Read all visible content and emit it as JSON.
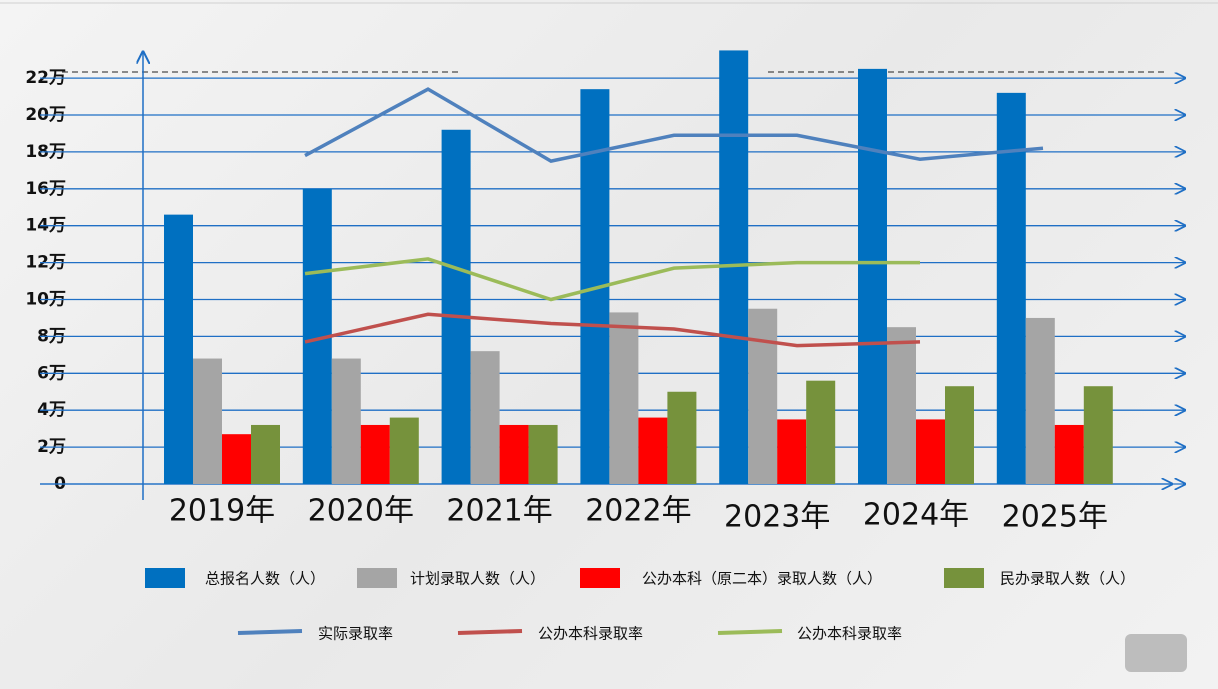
{
  "chart_data": {
    "type": "bar",
    "categories": [
      "2019年",
      "2020年",
      "2021年",
      "2022年",
      "2023年",
      "2024年",
      "2025年"
    ],
    "ylim": [
      0,
      23.5
    ],
    "yticks": [
      0,
      {
        "value": 2,
        "label": "2万"
      },
      {
        "value": 4,
        "label": "4万"
      },
      {
        "value": 6,
        "label": "6万"
      },
      {
        "value": 8,
        "label": "8万"
      },
      {
        "value": 10,
        "label": "10万"
      },
      {
        "value": 12,
        "label": "12万"
      },
      {
        "value": 14,
        "label": "14万"
      },
      {
        "value": 16,
        "label": "16万"
      },
      {
        "value": 18,
        "label": "18万"
      },
      {
        "value": 20,
        "label": "20万"
      },
      {
        "value": 22,
        "label": "22万"
      }
    ],
    "grid": true,
    "series": [
      {
        "name": "总报名人数（人）",
        "type": "bar",
        "color": "#0070c0",
        "values": [
          14.6,
          16.0,
          19.2,
          21.4,
          23.5,
          22.5,
          21.2
        ]
      },
      {
        "name": "计划录取人数（人）",
        "type": "bar",
        "color": "#a5a5a5",
        "values": [
          6.8,
          6.8,
          7.2,
          9.3,
          9.5,
          8.5,
          9.0
        ]
      },
      {
        "name": "公办本科（原二本）录取人数（人）",
        "type": "bar",
        "color": "#ff0000",
        "values": [
          2.7,
          3.2,
          3.2,
          3.6,
          3.5,
          3.5,
          3.2
        ]
      },
      {
        "name": "民办录取人数（人）",
        "type": "bar",
        "color": "#76923c",
        "values": [
          3.2,
          3.6,
          3.2,
          5.0,
          5.6,
          5.3,
          5.3
        ]
      },
      {
        "name": "实际录取率",
        "type": "line",
        "color": "#4f81bd",
        "values": [
          17.8,
          21.4,
          17.5,
          18.9,
          18.9,
          17.6,
          18.2
        ]
      },
      {
        "name": "公办本科录取率",
        "type": "line",
        "color": "#c0504d",
        "values": [
          7.7,
          9.2,
          8.7,
          8.4,
          7.5,
          7.7,
          null
        ]
      },
      {
        "name": "公办本科录取率",
        "type": "line",
        "color": "#9bbb59",
        "values": [
          11.4,
          12.2,
          10.0,
          11.7,
          12.0,
          12.0,
          null
        ]
      }
    ]
  }
}
